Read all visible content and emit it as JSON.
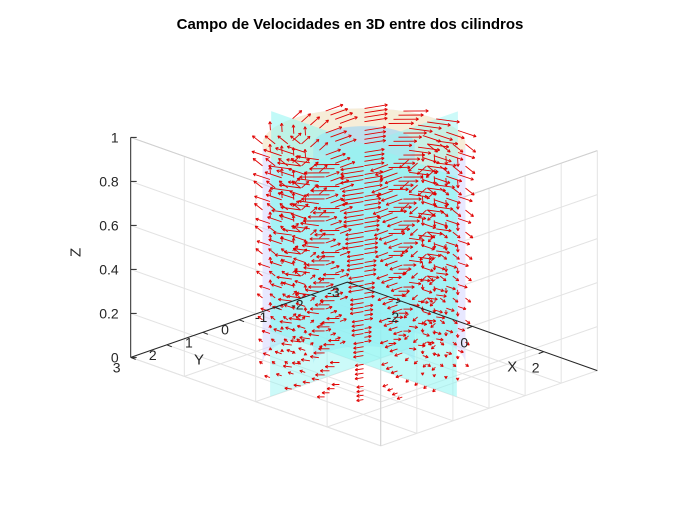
{
  "chart_data": {
    "type": "quiver3d",
    "title": "Campo de Velocidades en 3D entre dos cilindros",
    "xlabel": "X",
    "ylabel": "Y",
    "zlabel": "Z",
    "xlim": [
      -3.5,
      3.5
    ],
    "ylim": [
      -3,
      3
    ],
    "zlim": [
      0,
      1
    ],
    "xticks": [
      -2,
      0,
      2
    ],
    "yticks": [
      -3,
      -2,
      -1,
      0,
      1,
      2,
      3
    ],
    "zticks": [
      0,
      0.2,
      0.4,
      0.6,
      0.8,
      1
    ],
    "grid": true,
    "inner_cylinder_radius": 1,
    "outer_cylinder_radius": 2,
    "vector_field": {
      "description": "swirling velocity field between the cylinders",
      "radii": [
        1.25,
        1.5,
        1.75,
        2.0
      ],
      "angles_count": 16,
      "z_levels": [
        0,
        0.1,
        0.2,
        0.3,
        0.4,
        0.5,
        0.6,
        0.7,
        0.8,
        0.9,
        1.0
      ]
    },
    "cutting_planes": [
      "x = 0",
      "y = 0"
    ],
    "colors": {
      "arrows": "#e00000",
      "outer_cylinder": "#d6d6ff",
      "outer_cylinder_top": "#fff2c8",
      "inner_cylinder": "#9fd6f5",
      "plane": "#8ff5f2"
    }
  }
}
